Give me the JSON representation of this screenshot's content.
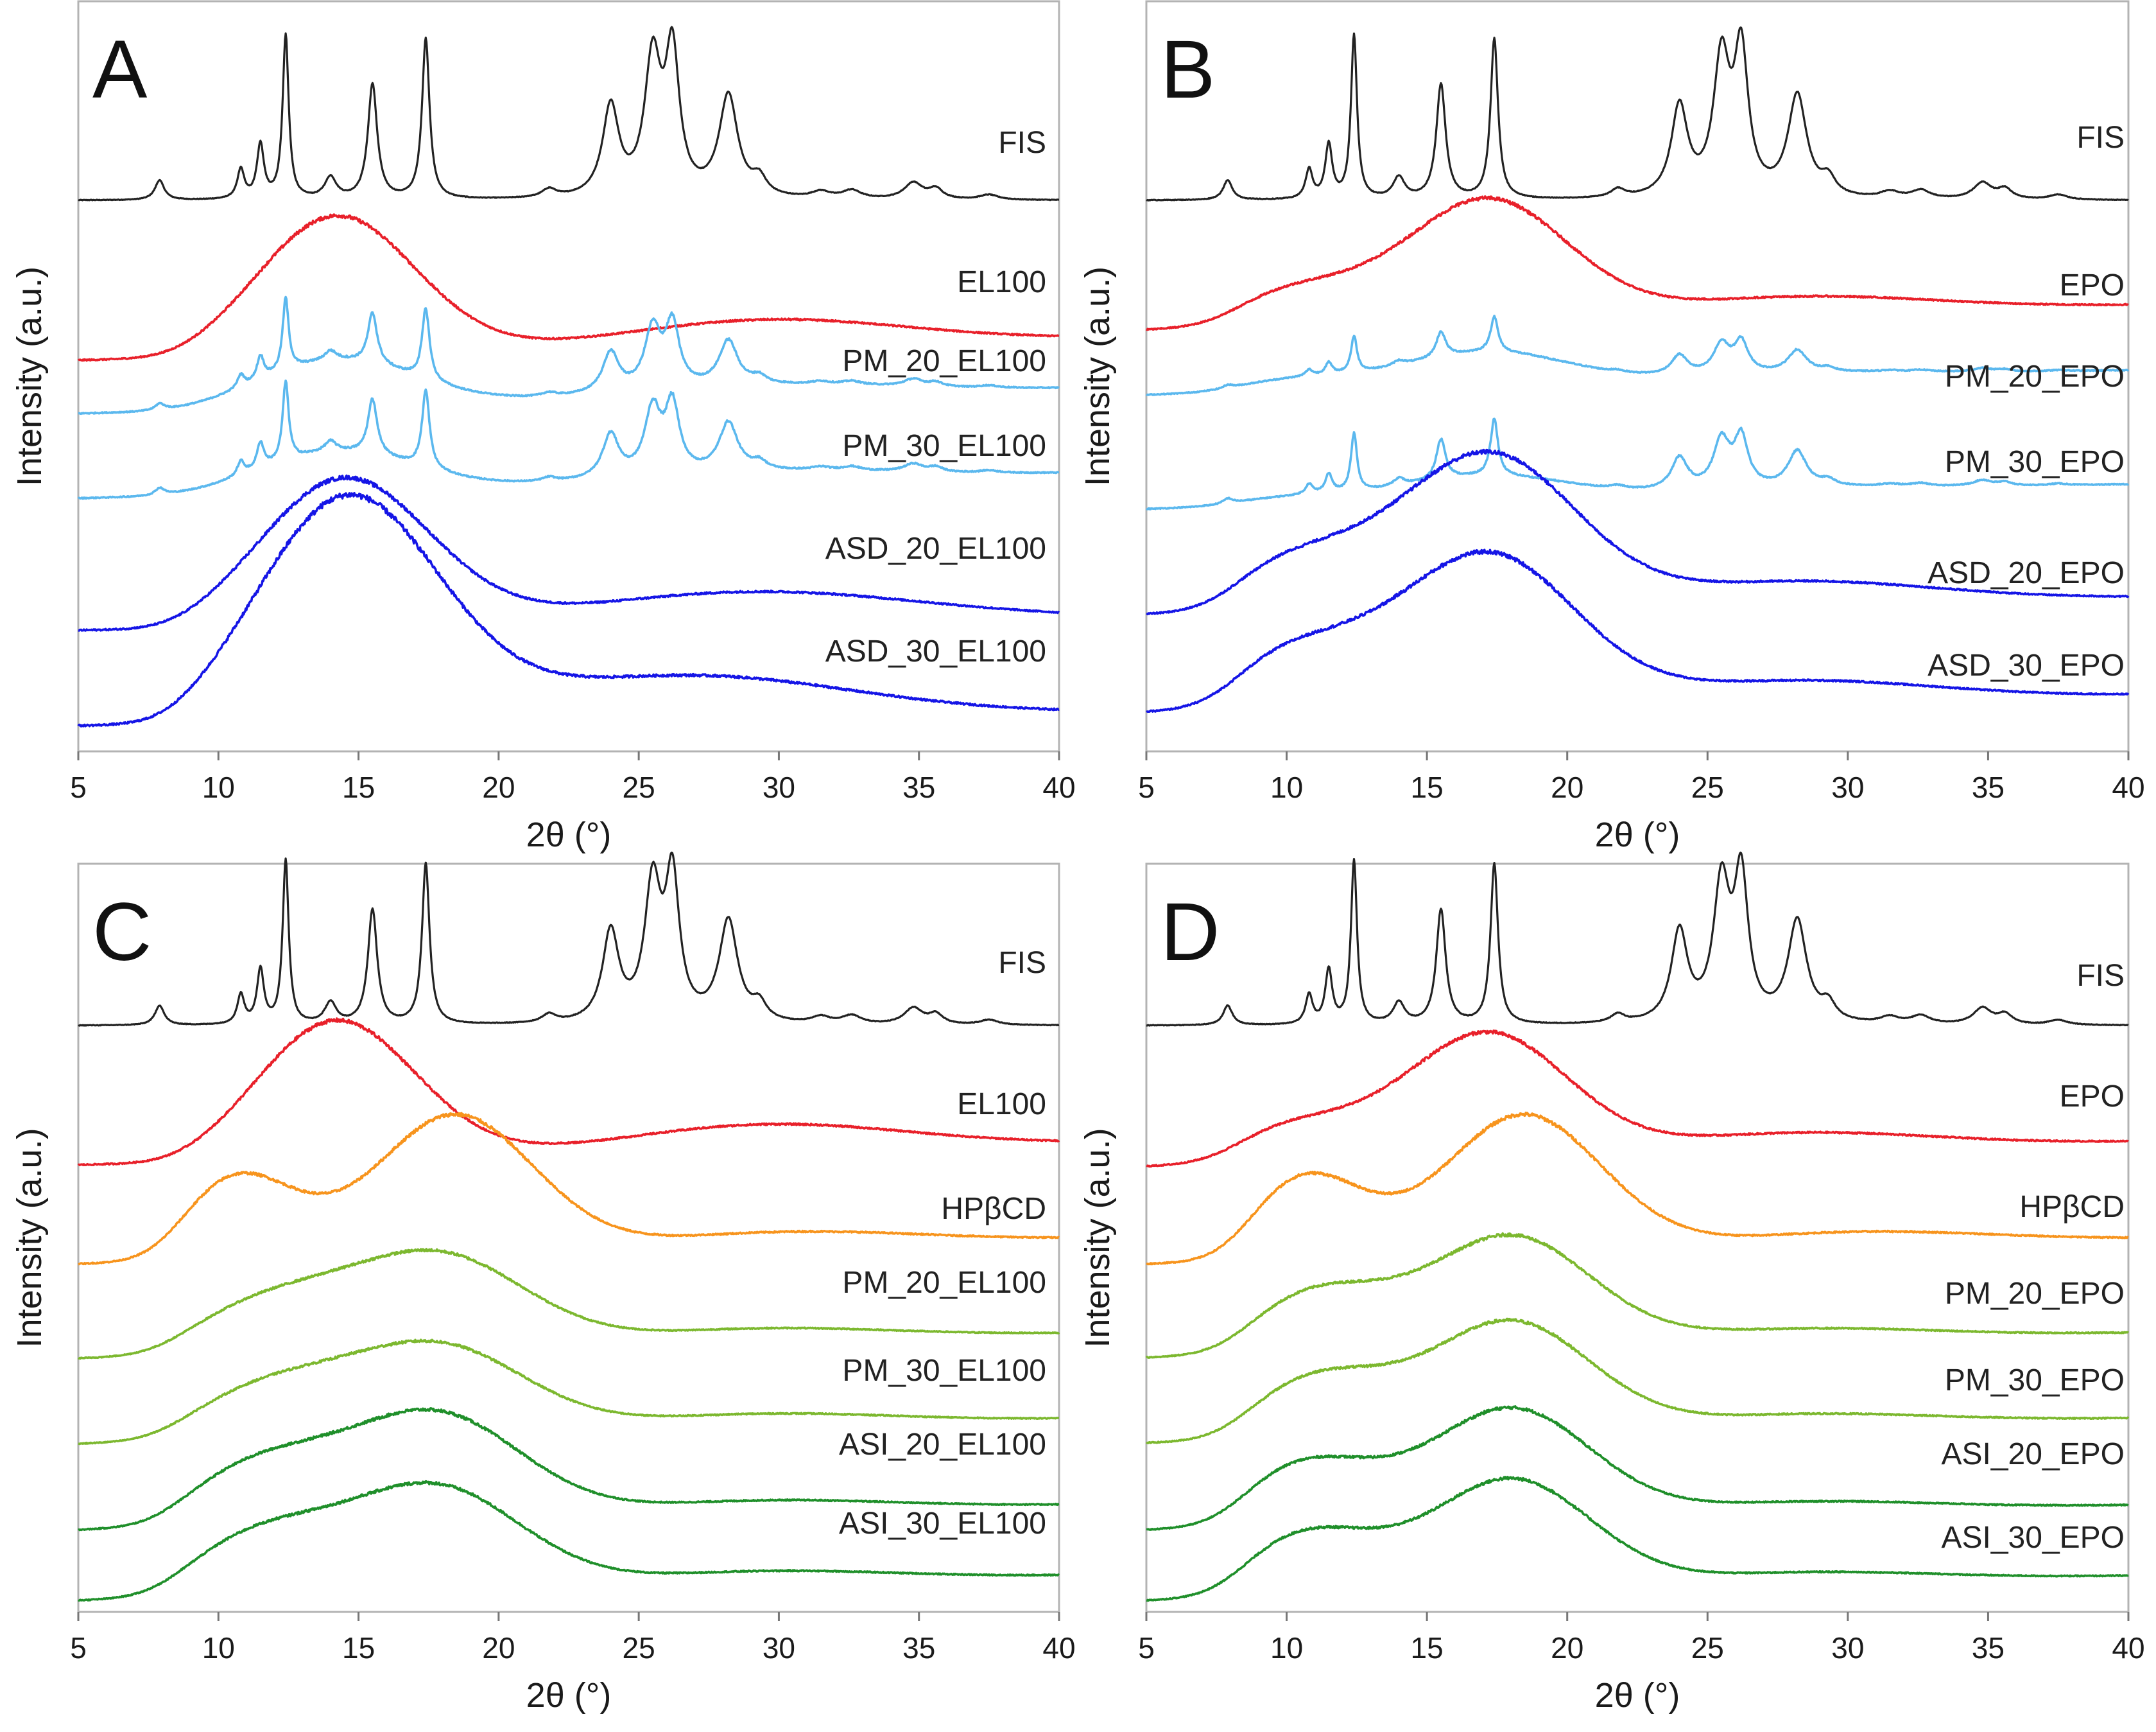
{
  "figure": {
    "axis_common": {
      "xlabel": "2θ (°)",
      "ylabel": "Intensity (a.u.)",
      "xlim": [
        5,
        40
      ],
      "xticks": [
        5,
        10,
        15,
        20,
        25,
        30,
        35,
        40
      ]
    },
    "colors": {
      "FIS": "#222222",
      "polymer": "#e8202a",
      "pm_light": "#5bb8ee",
      "asd_blue": "#1515e6",
      "hpbcd": "#f7941d",
      "pm_green": "#7cb82f",
      "asi_green": "#1f8f2a"
    }
  },
  "chart_data": [
    {
      "panel": "A",
      "type": "line",
      "xlabel": "2θ (°)",
      "ylabel": "Intensity (a.u.)",
      "xlim": [
        5,
        40
      ],
      "series": [
        {
          "name": "FIS",
          "label": "FIS",
          "color": "#222222",
          "kind": "crystal",
          "base": 0.05
        },
        {
          "name": "EL100",
          "label": "EL100",
          "color": "#e8202a",
          "kind": "amorphous",
          "peaks": [
            [
              14.2,
              0.92,
              2.8
            ],
            [
              29.5,
              0.17,
              5.0
            ]
          ],
          "base": 0.04,
          "tail": 0.02
        },
        {
          "name": "PM_20_EL100",
          "label": "PM_20_EL100",
          "color": "#5bb8ee",
          "kind": "mix",
          "cryst": 0.55,
          "peaks": [
            [
              14.2,
              0.35,
              2.8
            ],
            [
              29.5,
              0.08,
              5.0
            ]
          ],
          "base": 0.03,
          "tail": 0.0
        },
        {
          "name": "PM_30_EL100",
          "label": "PM_30_EL100",
          "color": "#5bb8ee",
          "kind": "mix",
          "cryst": 0.6,
          "peaks": [
            [
              14.2,
              0.3,
              2.8
            ],
            [
              29.5,
              0.07,
              5.0
            ]
          ],
          "base": 0.03,
          "tail": 0.0
        },
        {
          "name": "ASD_20_EL100",
          "label": "ASD_20_EL100",
          "color": "#1515e6",
          "kind": "amorphous",
          "peaks": [
            [
              14.5,
              0.98,
              3.0
            ],
            [
              29.0,
              0.2,
              6.0
            ]
          ],
          "base": 0.05,
          "tail": 0.08
        },
        {
          "name": "ASD_30_EL100",
          "label": "ASD_30_EL100",
          "color": "#1515e6",
          "kind": "amorphous",
          "peaks": [
            [
              14.6,
              1.15,
              3.2
            ],
            [
              26.5,
              0.22,
              6.0
            ]
          ],
          "base": 0.04,
          "tail": 0.06
        }
      ]
    },
    {
      "panel": "B",
      "type": "line",
      "xlabel": "2θ (°)",
      "ylabel": "Intensity (a.u.)",
      "xlim": [
        5,
        40
      ],
      "series": [
        {
          "name": "FIS",
          "label": "FIS",
          "color": "#222222",
          "kind": "crystal",
          "base": 0.05
        },
        {
          "name": "EPO",
          "label": "EPO",
          "color": "#e8202a",
          "kind": "amorphous",
          "peaks": [
            [
              10.0,
              0.28,
              3.2
            ],
            [
              17.2,
              0.82,
              2.8
            ],
            [
              28.0,
              0.12,
              5.0
            ]
          ],
          "base": 0.05,
          "tail": 0.0
        },
        {
          "name": "PM_20_EPO",
          "label": "PM_20_EPO",
          "color": "#5bb8ee",
          "kind": "mix",
          "cryst": 0.33,
          "peaks": [
            [
              10.0,
              0.12,
              3.2
            ],
            [
              17.2,
              0.3,
              2.8
            ],
            [
              28.0,
              0.05,
              5.0
            ]
          ],
          "base": 0.03,
          "tail": 0.0
        },
        {
          "name": "PM_30_EPO",
          "label": "PM_30_EPO",
          "color": "#5bb8ee",
          "kind": "mix",
          "cryst": 0.5,
          "peaks": [
            [
              10.0,
              0.08,
              3.2
            ],
            [
              17.2,
              0.2,
              2.8
            ],
            [
              28.0,
              0.04,
              5.0
            ]
          ],
          "base": 0.03,
          "tail": 0.0
        },
        {
          "name": "ASD_20_EPO",
          "label": "ASD_20_EPO",
          "color": "#1515e6",
          "kind": "amorphous",
          "peaks": [
            [
              10.0,
              0.4,
              3.5
            ],
            [
              17.3,
              1.0,
              3.0
            ],
            [
              28.0,
              0.15,
              5.0
            ]
          ],
          "base": 0.05,
          "tail": 0.05
        },
        {
          "name": "ASD_30_EPO",
          "label": "ASD_30_EPO",
          "color": "#1515e6",
          "kind": "amorphous",
          "peaks": [
            [
              10.0,
              0.45,
              3.5
            ],
            [
              17.3,
              0.98,
              3.0
            ],
            [
              28.0,
              0.14,
              5.0
            ]
          ],
          "base": 0.04,
          "tail": 0.05
        }
      ]
    },
    {
      "panel": "C",
      "type": "line",
      "xlabel": "2θ (°)",
      "ylabel": "Intensity (a.u.)",
      "xlim": [
        5,
        40
      ],
      "series": [
        {
          "name": "FIS",
          "label": "FIS",
          "color": "#222222",
          "kind": "crystal",
          "base": 0.05
        },
        {
          "name": "EL100",
          "label": "EL100",
          "color": "#e8202a",
          "kind": "amorphous",
          "peaks": [
            [
              14.2,
              0.92,
              2.8
            ],
            [
              29.5,
              0.17,
              5.0
            ]
          ],
          "base": 0.04,
          "tail": 0.02
        },
        {
          "name": "HPBCD",
          "label": "HPβCD",
          "color": "#f7941d",
          "kind": "amorphous",
          "peaks": [
            [
              10.5,
              0.6,
              2.2
            ],
            [
              18.4,
              0.95,
              2.8
            ],
            [
              30.0,
              0.1,
              5.0
            ]
          ],
          "base": 0.03,
          "tail": 0.0
        },
        {
          "name": "PM_20_EL100",
          "label": "PM_20_EL100",
          "color": "#7cb82f",
          "kind": "amorphous",
          "peaks": [
            [
              12.0,
              0.5,
              3.2
            ],
            [
              18.0,
              0.8,
              3.0
            ],
            [
              29.0,
              0.12,
              5.0
            ]
          ],
          "base": 0.04,
          "tail": 0.0
        },
        {
          "name": "PM_30_EL100",
          "label": "PM_30_EL100",
          "color": "#7cb82f",
          "kind": "amorphous",
          "peaks": [
            [
              12.0,
              0.5,
              3.2
            ],
            [
              18.0,
              0.75,
              3.0
            ],
            [
              29.0,
              0.12,
              5.0
            ]
          ],
          "base": 0.04,
          "tail": 0.0
        },
        {
          "name": "ASI_20_EL100",
          "label": "ASI_20_EL100",
          "color": "#1f8f2a",
          "kind": "amorphous",
          "peaks": [
            [
              11.5,
              0.5,
              3.0
            ],
            [
              17.8,
              0.82,
              3.0
            ],
            [
              29.0,
              0.1,
              5.0
            ]
          ],
          "base": 0.04,
          "tail": 0.0
        },
        {
          "name": "ASI_30_EL100",
          "label": "ASI_30_EL100",
          "color": "#1f8f2a",
          "kind": "amorphous",
          "peaks": [
            [
              11.5,
              0.5,
              3.0
            ],
            [
              17.8,
              0.8,
              3.0
            ],
            [
              29.0,
              0.1,
              5.0
            ]
          ],
          "base": 0.04,
          "tail": 0.0
        }
      ]
    },
    {
      "panel": "D",
      "type": "line",
      "xlabel": "2θ (°)",
      "ylabel": "Intensity (a.u.)",
      "xlim": [
        5,
        40
      ],
      "series": [
        {
          "name": "FIS",
          "label": "FIS",
          "color": "#222222",
          "kind": "crystal",
          "base": 0.05
        },
        {
          "name": "EPO",
          "label": "EPO",
          "color": "#e8202a",
          "kind": "amorphous",
          "peaks": [
            [
              10.0,
              0.28,
              3.2
            ],
            [
              17.2,
              0.82,
              2.8
            ],
            [
              28.0,
              0.12,
              5.0
            ]
          ],
          "base": 0.05,
          "tail": 0.0
        },
        {
          "name": "HPBCD",
          "label": "HPβCD",
          "color": "#f7941d",
          "kind": "amorphous",
          "peaks": [
            [
              10.5,
              0.6,
              2.2
            ],
            [
              18.4,
              0.95,
              2.8
            ],
            [
              30.0,
              0.1,
              5.0
            ]
          ],
          "base": 0.03,
          "tail": 0.0
        },
        {
          "name": "PM_20_EPO",
          "label": "PM_20_EPO",
          "color": "#7cb82f",
          "kind": "amorphous",
          "peaks": [
            [
              11.0,
              0.5,
              2.8
            ],
            [
              18.0,
              0.85,
              2.8
            ],
            [
              28.0,
              0.1,
              5.0
            ]
          ],
          "base": 0.04,
          "tail": 0.0
        },
        {
          "name": "PM_30_EPO",
          "label": "PM_30_EPO",
          "color": "#7cb82f",
          "kind": "amorphous",
          "peaks": [
            [
              11.0,
              0.5,
              2.8
            ],
            [
              18.0,
              0.85,
              2.8
            ],
            [
              28.0,
              0.1,
              5.0
            ]
          ],
          "base": 0.04,
          "tail": 0.0
        },
        {
          "name": "ASI_20_EPO",
          "label": "ASI_20_EPO",
          "color": "#1f8f2a",
          "kind": "amorphous",
          "peaks": [
            [
              10.5,
              0.55,
              2.8
            ],
            [
              18.0,
              0.9,
              2.8
            ],
            [
              28.0,
              0.1,
              5.0
            ]
          ],
          "base": 0.04,
          "tail": 0.0
        },
        {
          "name": "ASI_30_EPO",
          "label": "ASI_30_EPO",
          "color": "#1f8f2a",
          "kind": "amorphous",
          "peaks": [
            [
              10.5,
              0.55,
              2.8
            ],
            [
              18.0,
              0.9,
              2.8
            ],
            [
              28.0,
              0.1,
              5.0
            ]
          ],
          "base": 0.04,
          "tail": 0.0
        }
      ]
    }
  ],
  "crystal_peaks": [
    [
      7.9,
      0.12,
      0.2
    ],
    [
      10.8,
      0.18,
      0.15
    ],
    [
      11.5,
      0.33,
      0.15
    ],
    [
      12.4,
      1.0,
      0.13
    ],
    [
      14.0,
      0.13,
      0.25
    ],
    [
      15.5,
      0.7,
      0.2
    ],
    [
      17.4,
      0.98,
      0.16
    ],
    [
      21.8,
      0.05,
      0.3
    ],
    [
      24.0,
      0.55,
      0.35
    ],
    [
      25.5,
      0.82,
      0.35
    ],
    [
      26.2,
      0.85,
      0.3
    ],
    [
      28.2,
      0.62,
      0.4
    ],
    [
      29.3,
      0.1,
      0.3
    ],
    [
      31.5,
      0.04,
      0.4
    ],
    [
      32.6,
      0.05,
      0.4
    ],
    [
      34.8,
      0.1,
      0.4
    ],
    [
      35.6,
      0.06,
      0.3
    ],
    [
      37.5,
      0.03,
      0.4
    ]
  ]
}
